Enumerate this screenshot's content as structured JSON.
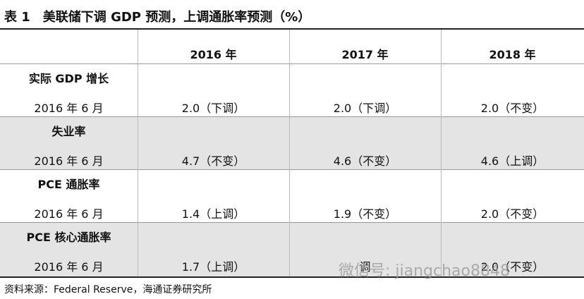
{
  "title": {
    "label": "表 1",
    "text": "美联储下调 GDP 预测，上调通胀率预测（%）"
  },
  "table": {
    "columns": [
      "2016 年",
      "2017 年",
      "2018 年"
    ],
    "rows": [
      {
        "label": "实际 GDP 增长",
        "date": "2016 年 6 月",
        "values": [
          "2.0（下调）",
          "2.0（下调）",
          "2.0（不变）"
        ]
      },
      {
        "label": "失业率",
        "date": "2016 年 6 月",
        "values": [
          "4.7（不变）",
          "4.6（不变）",
          "4.6（上调）"
        ]
      },
      {
        "label": "PCE 通胀率",
        "date": "2016 年 6 月",
        "values": [
          "1.4（上调）",
          "1.9（不变）",
          "2.0（不变）"
        ]
      },
      {
        "label": "PCE 核心通胀率",
        "date": "2016 年 6 月",
        "values": [
          "1.7（上调）",
          "调",
          "2.0（不变）"
        ]
      }
    ]
  },
  "source": "资料来源：Federal Reserve，海通证券研究所",
  "watermark": "微信号: jiangchao8848"
}
